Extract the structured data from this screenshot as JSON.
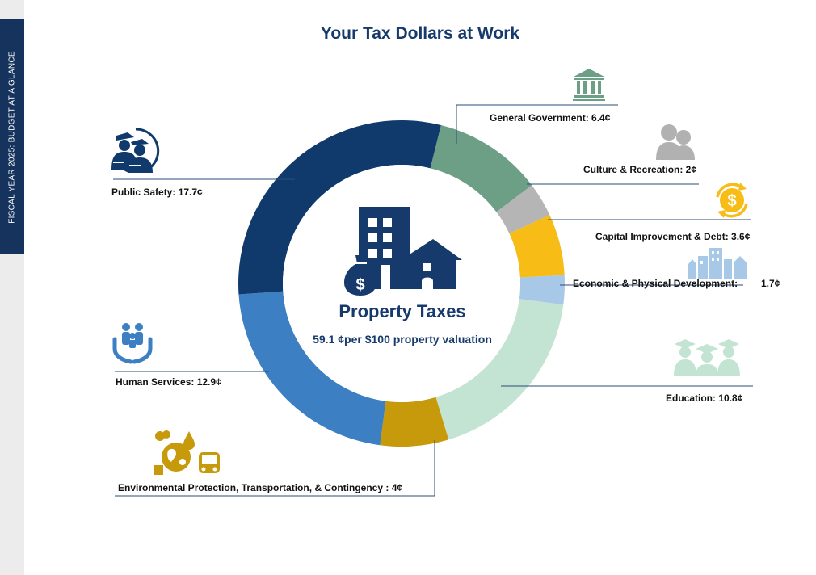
{
  "sidebar_text": "FISCAL YEAR 2025: BUDGET AT A GLANCE",
  "title": "Your Tax Dollars at Work",
  "center": {
    "title": "Property Taxes",
    "subtitle": "59.1 ¢per $100 property valuation"
  },
  "labels": {
    "general_government": "General Government:  6.4¢",
    "culture_recreation": "Culture & Recreation:  2¢",
    "capital_improvement": "Capital Improvement & Debt:  3.6¢",
    "economic_development": "Economic & Physical Development:",
    "economic_development_value": "1.7¢",
    "education": "Education:  10.8¢",
    "environmental": "Environmental Protection, Transportation, & Contingency :  4¢",
    "human_services": "Human Services:  12.9¢",
    "public_safety": "Public Safety:  17.7¢"
  },
  "chart_data": {
    "type": "pie",
    "categories": [
      "General Government",
      "Culture & Recreation",
      "Capital Improvement & Debt",
      "Economic & Physical Development",
      "Education",
      "Environmental Protection, Transportation, & Contingency",
      "Human Services",
      "Public Safety"
    ],
    "values": [
      6.4,
      2,
      3.6,
      1.7,
      10.8,
      4,
      12.9,
      17.7
    ],
    "colors": [
      "#6d9f86",
      "#b5b5b5",
      "#f7bd16",
      "#a8c8e8",
      "#c3e3d3",
      "#c79a0b",
      "#3d7fc3",
      "#103a6c"
    ],
    "donut": true
  },
  "colors": {
    "navy": "#163a6b",
    "sidebar": "#16335e"
  },
  "icons": [
    "government-building-icon",
    "people-icon",
    "dollar-cycle-icon",
    "city-buildings-icon",
    "graduates-icon",
    "environment-bus-icon",
    "family-hands-icon",
    "police-icon",
    "building-house-money-icon"
  ]
}
